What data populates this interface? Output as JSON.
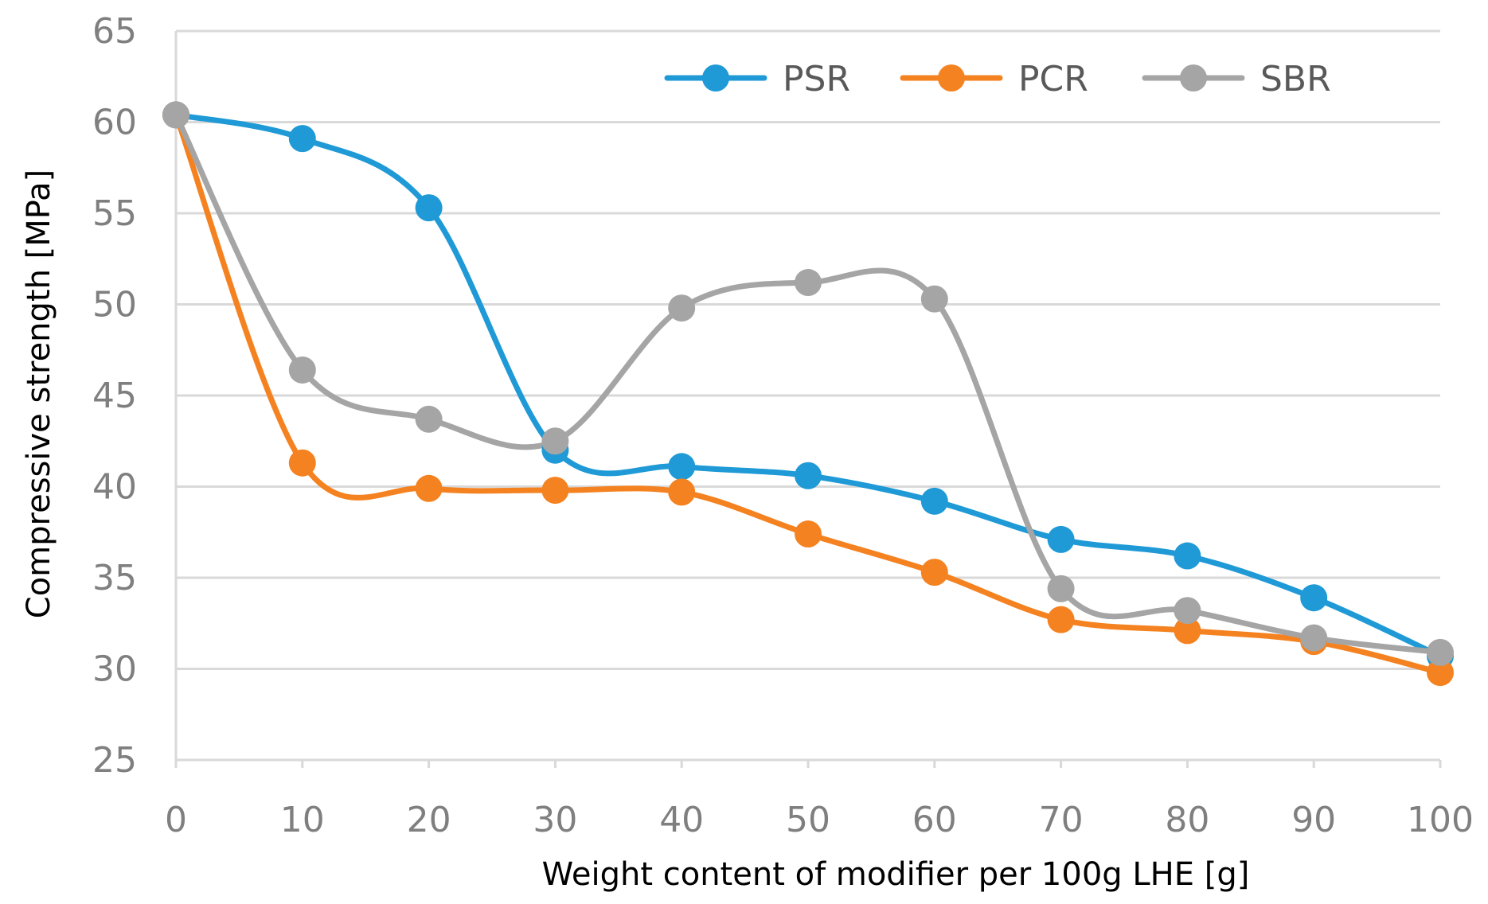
{
  "chart_data": {
    "type": "line",
    "title": "",
    "xlabel": "Weight content of modifier per 100g LHE [g]",
    "ylabel": "Compressive strength [MPa]",
    "x": [
      0,
      10,
      20,
      30,
      40,
      50,
      60,
      70,
      80,
      90,
      100
    ],
    "xlim": [
      0,
      100
    ],
    "ylim": [
      25,
      65
    ],
    "yticks": [
      25,
      30,
      35,
      40,
      45,
      50,
      55,
      60,
      65
    ],
    "grid": true,
    "legend_position": "top-right",
    "smooth": true,
    "series": [
      {
        "name": "PSR",
        "color": "#1f9ad6",
        "values": [
          60.4,
          59.1,
          55.3,
          42.0,
          41.1,
          40.6,
          39.2,
          37.1,
          36.2,
          33.9,
          30.7
        ]
      },
      {
        "name": "PCR",
        "color": "#f58220",
        "values": [
          60.4,
          41.3,
          39.9,
          39.8,
          39.7,
          37.4,
          35.3,
          32.7,
          32.1,
          31.5,
          29.8
        ]
      },
      {
        "name": "SBR",
        "color": "#a5a5a5",
        "values": [
          60.4,
          46.4,
          43.7,
          42.5,
          49.8,
          51.2,
          50.3,
          34.4,
          33.2,
          31.7,
          30.9
        ]
      }
    ]
  }
}
